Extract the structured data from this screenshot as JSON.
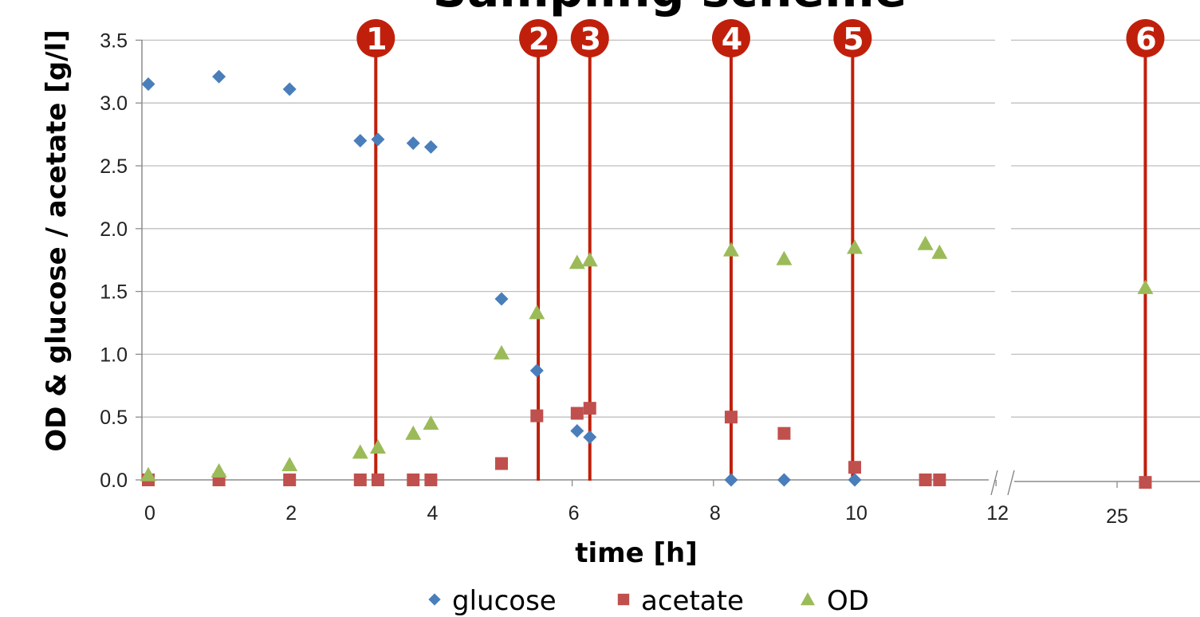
{
  "chart_data": {
    "type": "scatter",
    "title": "Sampling scheme",
    "xlabel": "time [h]",
    "ylabel": "OD & glucose / acetate [g/l]",
    "ylim": [
      0,
      3.5
    ],
    "yticks": [
      "0.0",
      "0.5",
      "1.0",
      "1.5",
      "2.0",
      "2.5",
      "3.0",
      "3.5"
    ],
    "xlim_left": [
      0,
      12
    ],
    "xticks_left": [
      "0",
      "2",
      "4",
      "6",
      "8",
      "10",
      "12"
    ],
    "xtick_right": "25",
    "x_axis_break": true,
    "grid": "horizontal",
    "legend_position": "bottom",
    "colors": {
      "glucose": "#4a7ebb",
      "acetate": "#c0504d",
      "OD": "#9bbb59",
      "sample_line": "#c0200b",
      "grid": "#bfbfbf",
      "axis": "#8c8c8c"
    },
    "series": [
      {
        "name": "glucose",
        "marker": "diamond",
        "points": [
          [
            0,
            3.15
          ],
          [
            1,
            3.21
          ],
          [
            2,
            3.11
          ],
          [
            3,
            2.7
          ],
          [
            3.25,
            2.71
          ],
          [
            3.75,
            2.68
          ],
          [
            4,
            2.65
          ],
          [
            5,
            1.44
          ],
          [
            5.5,
            0.87
          ],
          [
            6.07,
            0.39
          ],
          [
            6.25,
            0.34
          ],
          [
            8.25,
            0.0
          ],
          [
            9,
            0.0
          ],
          [
            10,
            0.0
          ]
        ]
      },
      {
        "name": "acetate",
        "marker": "square",
        "points": [
          [
            0,
            0.0
          ],
          [
            1,
            0.0
          ],
          [
            2,
            0.0
          ],
          [
            3,
            0.0
          ],
          [
            3.25,
            0.0
          ],
          [
            3.75,
            0.0
          ],
          [
            4,
            0.0
          ],
          [
            5,
            0.13
          ],
          [
            5.5,
            0.51
          ],
          [
            6.07,
            0.53
          ],
          [
            6.25,
            0.57
          ],
          [
            8.25,
            0.5
          ],
          [
            9,
            0.37
          ],
          [
            10,
            0.1
          ],
          [
            11,
            0.0
          ],
          [
            11.2,
            0.0
          ],
          [
            25.4,
            -0.02
          ]
        ]
      },
      {
        "name": "OD",
        "marker": "triangle",
        "points": [
          [
            0,
            0.04
          ],
          [
            1,
            0.07
          ],
          [
            2,
            0.12
          ],
          [
            3,
            0.22
          ],
          [
            3.25,
            0.26
          ],
          [
            3.75,
            0.37
          ],
          [
            4,
            0.45
          ],
          [
            5,
            1.01
          ],
          [
            5.5,
            1.33
          ],
          [
            6.07,
            1.73
          ],
          [
            6.25,
            1.75
          ],
          [
            8.25,
            1.83
          ],
          [
            9,
            1.76
          ],
          [
            10,
            1.85
          ],
          [
            11,
            1.88
          ],
          [
            11.2,
            1.81
          ],
          [
            25.4,
            1.53
          ]
        ]
      }
    ],
    "sample_markers": [
      {
        "label": "1",
        "x": 3.22
      },
      {
        "label": "2",
        "x": 5.52
      },
      {
        "label": "3",
        "x": 6.25
      },
      {
        "label": "4",
        "x": 8.25
      },
      {
        "label": "5",
        "x": 9.97
      },
      {
        "label": "6",
        "x": 25.4
      }
    ]
  }
}
